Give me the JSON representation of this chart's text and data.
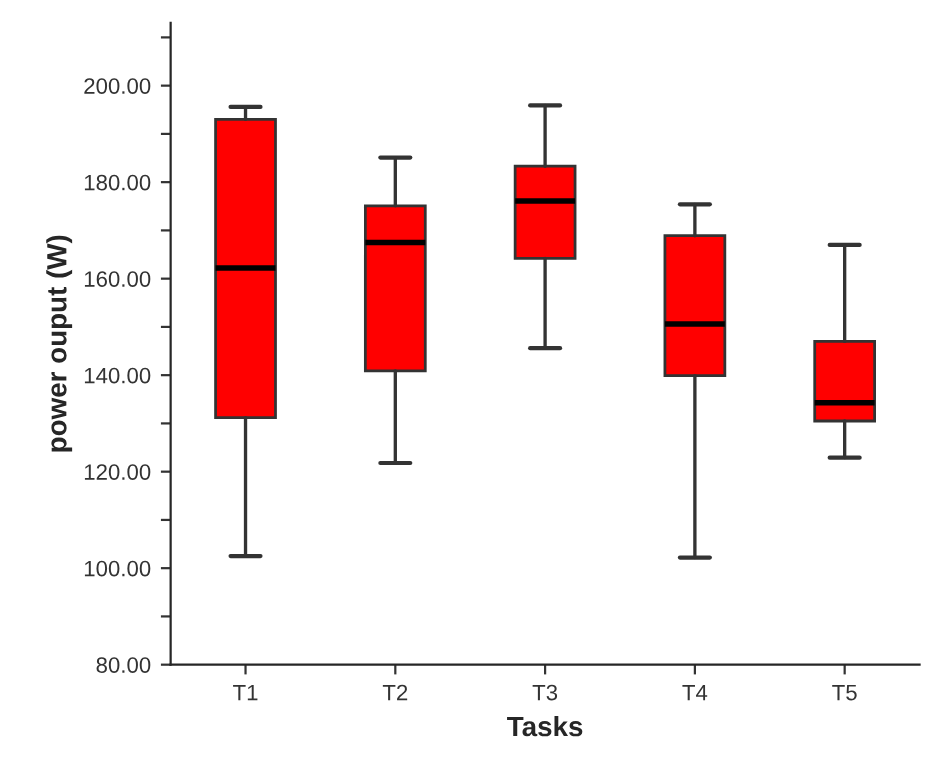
{
  "chart_data": {
    "type": "box",
    "xlabel": "Tasks",
    "ylabel": "power ouput (W)",
    "categories": [
      "T1",
      "T2",
      "T3",
      "T4",
      "T5"
    ],
    "color": "#ff0000",
    "boxes": [
      {
        "low": 102.5,
        "q1": 131.2,
        "median": 162.2,
        "q3": 193,
        "high": 195.6
      },
      {
        "low": 121.8,
        "q1": 140.9,
        "median": 167.5,
        "q3": 175.1,
        "high": 185.1
      },
      {
        "low": 145.6,
        "q1": 164.2,
        "median": 176.1,
        "q3": 183.3,
        "high": 195.9
      },
      {
        "low": 102.2,
        "q1": 139.9,
        "median": 150.6,
        "q3": 168.9,
        "high": 175.4
      },
      {
        "low": 122.9,
        "q1": 130.5,
        "median": 134.3,
        "q3": 147,
        "high": 167
      }
    ],
    "ylim": [
      80,
      213
    ],
    "yticks": [
      {
        "value": 80,
        "label": "80.00"
      },
      {
        "value": 90,
        "label": null
      },
      {
        "value": 100,
        "label": "100.00"
      },
      {
        "value": 110,
        "label": null
      },
      {
        "value": 120,
        "label": "120.00"
      },
      {
        "value": 130,
        "label": null
      },
      {
        "value": 140,
        "label": "140.00"
      },
      {
        "value": 150,
        "label": null
      },
      {
        "value": 160,
        "label": "160.00"
      },
      {
        "value": 170,
        "label": null
      },
      {
        "value": 180,
        "label": "180.00"
      },
      {
        "value": 190,
        "label": null
      },
      {
        "value": 200,
        "label": "200.00"
      },
      {
        "value": 210,
        "label": null
      }
    ],
    "grid": false
  }
}
